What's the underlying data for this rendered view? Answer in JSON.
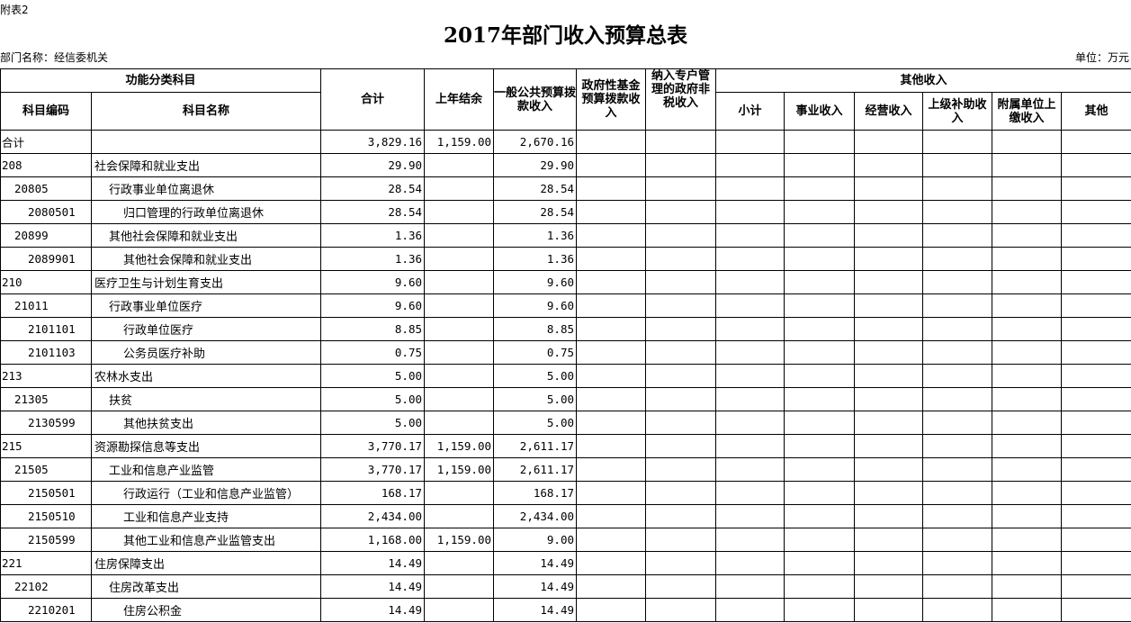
{
  "note": "附表2",
  "title": "2017年部门收入预算总表",
  "dept": "部门名称：经信委机关",
  "unit": "单位：万元",
  "headers": {
    "func": "功能分类科目",
    "code": "科目编码",
    "name": "科目名称",
    "total": "合计",
    "carry": "上年结余",
    "general": "一般公共预算拨款收入",
    "fund": "政府性基金预算拨款收入",
    "special": "纳入专户管理的政府非税收入",
    "other": "其他收入",
    "subtotal": "小计",
    "business": "事业收入",
    "operating": "经营收入",
    "superior": "上级补助收入",
    "affiliated": "附属单位上缴收入",
    "misc": "其他"
  },
  "rows": [
    {
      "code": "合计",
      "name": "",
      "level": 1,
      "total": "3,829.16",
      "carry": "1,159.00",
      "general": "2,670.16"
    },
    {
      "code": "208",
      "name": "社会保障和就业支出",
      "level": 1,
      "total": "29.90",
      "carry": "",
      "general": "29.90"
    },
    {
      "code": "20805",
      "name": "行政事业单位离退休",
      "level": 2,
      "total": "28.54",
      "carry": "",
      "general": "28.54"
    },
    {
      "code": "2080501",
      "name": "归口管理的行政单位离退休",
      "level": 3,
      "total": "28.54",
      "carry": "",
      "general": "28.54"
    },
    {
      "code": "20899",
      "name": "其他社会保障和就业支出",
      "level": 2,
      "total": "1.36",
      "carry": "",
      "general": "1.36"
    },
    {
      "code": "2089901",
      "name": "其他社会保障和就业支出",
      "level": 3,
      "total": "1.36",
      "carry": "",
      "general": "1.36"
    },
    {
      "code": "210",
      "name": "医疗卫生与计划生育支出",
      "level": 1,
      "total": "9.60",
      "carry": "",
      "general": "9.60"
    },
    {
      "code": "21011",
      "name": "行政事业单位医疗",
      "level": 2,
      "total": "9.60",
      "carry": "",
      "general": "9.60"
    },
    {
      "code": "2101101",
      "name": "行政单位医疗",
      "level": 3,
      "total": "8.85",
      "carry": "",
      "general": "8.85"
    },
    {
      "code": "2101103",
      "name": "公务员医疗补助",
      "level": 3,
      "total": "0.75",
      "carry": "",
      "general": "0.75"
    },
    {
      "code": "213",
      "name": "农林水支出",
      "level": 1,
      "total": "5.00",
      "carry": "",
      "general": "5.00"
    },
    {
      "code": "21305",
      "name": "扶贫",
      "level": 2,
      "total": "5.00",
      "carry": "",
      "general": "5.00"
    },
    {
      "code": "2130599",
      "name": "其他扶贫支出",
      "level": 3,
      "total": "5.00",
      "carry": "",
      "general": "5.00"
    },
    {
      "code": "215",
      "name": "资源勘探信息等支出",
      "level": 1,
      "total": "3,770.17",
      "carry": "1,159.00",
      "general": "2,611.17"
    },
    {
      "code": "21505",
      "name": "工业和信息产业监管",
      "level": 2,
      "total": "3,770.17",
      "carry": "1,159.00",
      "general": "2,611.17"
    },
    {
      "code": "2150501",
      "name": "行政运行（工业和信息产业监管）",
      "level": 3,
      "total": "168.17",
      "carry": "",
      "general": "168.17"
    },
    {
      "code": "2150510",
      "name": "工业和信息产业支持",
      "level": 3,
      "total": "2,434.00",
      "carry": "",
      "general": "2,434.00"
    },
    {
      "code": "2150599",
      "name": "其他工业和信息产业监管支出",
      "level": 3,
      "total": "1,168.00",
      "carry": "1,159.00",
      "general": "9.00"
    },
    {
      "code": "221",
      "name": "住房保障支出",
      "level": 1,
      "total": "14.49",
      "carry": "",
      "general": "14.49"
    },
    {
      "code": "22102",
      "name": "住房改革支出",
      "level": 2,
      "total": "14.49",
      "carry": "",
      "general": "14.49"
    },
    {
      "code": "2210201",
      "name": "住房公积金",
      "level": 3,
      "total": "14.49",
      "carry": "",
      "general": "14.49"
    }
  ]
}
